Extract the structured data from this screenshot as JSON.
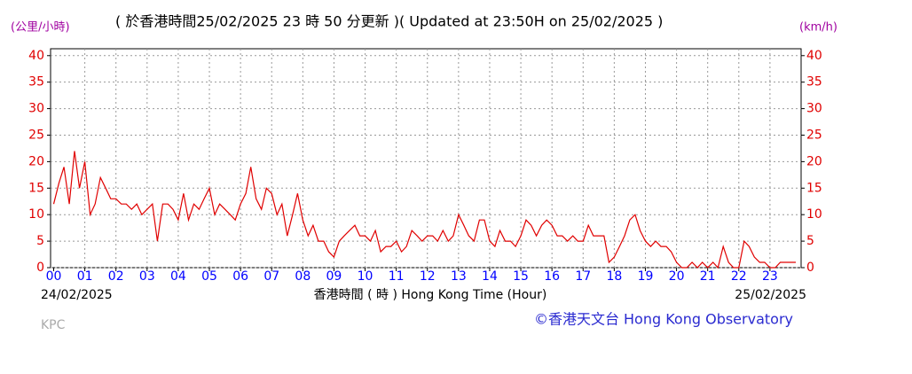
{
  "chart_data": {
    "type": "line",
    "title": "( 於香港時間25/02/2025 23 時 50 分更新 )( Updated at 23:50H on 25/02/2025 )",
    "y_label": "(公里/小時)",
    "y2_label": "(km/h)",
    "x_label": "香港時間 ( 時 ) Hong Kong Time (Hour)",
    "start_date": "24/02/2025",
    "end_date": "25/02/2025",
    "credit": "©香港天文台 Hong Kong Observatory",
    "station": "KPC",
    "grid": true,
    "xlim": [
      -0.1,
      24
    ],
    "ylim": [
      0,
      41.3
    ],
    "yticks": [
      0,
      5,
      10,
      15,
      20,
      25,
      30,
      35,
      40
    ],
    "xticks": [
      {
        "value": 0,
        "label": "00"
      },
      {
        "value": 1,
        "label": "01"
      },
      {
        "value": 2,
        "label": "02"
      },
      {
        "value": 3,
        "label": "03"
      },
      {
        "value": 4,
        "label": "04"
      },
      {
        "value": 5,
        "label": "05"
      },
      {
        "value": 6,
        "label": "06"
      },
      {
        "value": 7,
        "label": "07"
      },
      {
        "value": 8,
        "label": "08"
      },
      {
        "value": 9,
        "label": "09"
      },
      {
        "value": 10,
        "label": "10"
      },
      {
        "value": 11,
        "label": "11"
      },
      {
        "value": 12,
        "label": "12"
      },
      {
        "value": 13,
        "label": "13"
      },
      {
        "value": 14,
        "label": "14"
      },
      {
        "value": 15,
        "label": "15"
      },
      {
        "value": 16,
        "label": "16"
      },
      {
        "value": 17,
        "label": "17"
      },
      {
        "value": 18,
        "label": "18"
      },
      {
        "value": 19,
        "label": "19"
      },
      {
        "value": 20,
        "label": "20"
      },
      {
        "value": 21,
        "label": "21"
      },
      {
        "value": 22,
        "label": "22"
      },
      {
        "value": 23,
        "label": "23"
      }
    ],
    "color": "#e00000",
    "x": [
      0,
      0.17,
      0.33,
      0.5,
      0.67,
      0.83,
      1,
      1.17,
      1.33,
      1.5,
      1.67,
      1.83,
      2,
      2.17,
      2.33,
      2.5,
      2.67,
      2.83,
      3,
      3.17,
      3.33,
      3.5,
      3.67,
      3.83,
      4,
      4.17,
      4.33,
      4.5,
      4.67,
      4.83,
      5,
      5.17,
      5.33,
      5.5,
      5.67,
      5.83,
      6,
      6.17,
      6.33,
      6.5,
      6.67,
      6.83,
      7,
      7.17,
      7.33,
      7.5,
      7.67,
      7.83,
      8,
      8.17,
      8.33,
      8.5,
      8.67,
      8.83,
      9,
      9.17,
      9.33,
      9.5,
      9.67,
      9.83,
      10,
      10.17,
      10.33,
      10.5,
      10.67,
      10.83,
      11,
      11.17,
      11.33,
      11.5,
      11.67,
      11.83,
      12,
      12.17,
      12.33,
      12.5,
      12.67,
      12.83,
      13,
      13.17,
      13.33,
      13.5,
      13.67,
      13.83,
      14,
      14.17,
      14.33,
      14.5,
      14.67,
      14.83,
      15,
      15.17,
      15.33,
      15.5,
      15.67,
      15.83,
      16,
      16.17,
      16.33,
      16.5,
      16.67,
      16.83,
      17,
      17.17,
      17.33,
      17.5,
      17.67,
      17.83,
      18,
      18.17,
      18.33,
      18.5,
      18.67,
      18.83,
      19,
      19.17,
      19.33,
      19.5,
      19.67,
      19.83,
      20,
      20.17,
      20.33,
      20.5,
      20.67,
      20.83,
      21,
      21.17,
      21.33,
      21.5,
      21.67,
      21.83,
      22,
      22.17,
      22.33,
      22.5,
      22.67,
      22.83,
      23,
      23.17,
      23.33,
      23.5,
      23.67,
      23.83
    ],
    "values": [
      12,
      16,
      19,
      12,
      22,
      15,
      20,
      10,
      12,
      17,
      15,
      13,
      13,
      12,
      12,
      11,
      12,
      10,
      11,
      12,
      5,
      12,
      12,
      11,
      9,
      14,
      9,
      12,
      11,
      13,
      15,
      10,
      12,
      11,
      10,
      9,
      12,
      14,
      19,
      13,
      11,
      15,
      14,
      10,
      12,
      6,
      10,
      14,
      9,
      6,
      8,
      5,
      5,
      3,
      2,
      5,
      6,
      7,
      8,
      6,
      6,
      5,
      7,
      3,
      4,
      4,
      5,
      3,
      4,
      7,
      6,
      5,
      6,
      6,
      5,
      7,
      5,
      6,
      10,
      8,
      6,
      5,
      9,
      9,
      5,
      4,
      7,
      5,
      5,
      4,
      6,
      9,
      8,
      6,
      8,
      9,
      8,
      6,
      6,
      5,
      6,
      5,
      5,
      8,
      6,
      6,
      6,
      1,
      2,
      4,
      6,
      9,
      10,
      7,
      5,
      4,
      5,
      4,
      4,
      3,
      1,
      0,
      0,
      1,
      0,
      1,
      0,
      1,
      0,
      4,
      1,
      0,
      0,
      5,
      4,
      2,
      1,
      1,
      0,
      0,
      1,
      1,
      1,
      1
    ]
  }
}
